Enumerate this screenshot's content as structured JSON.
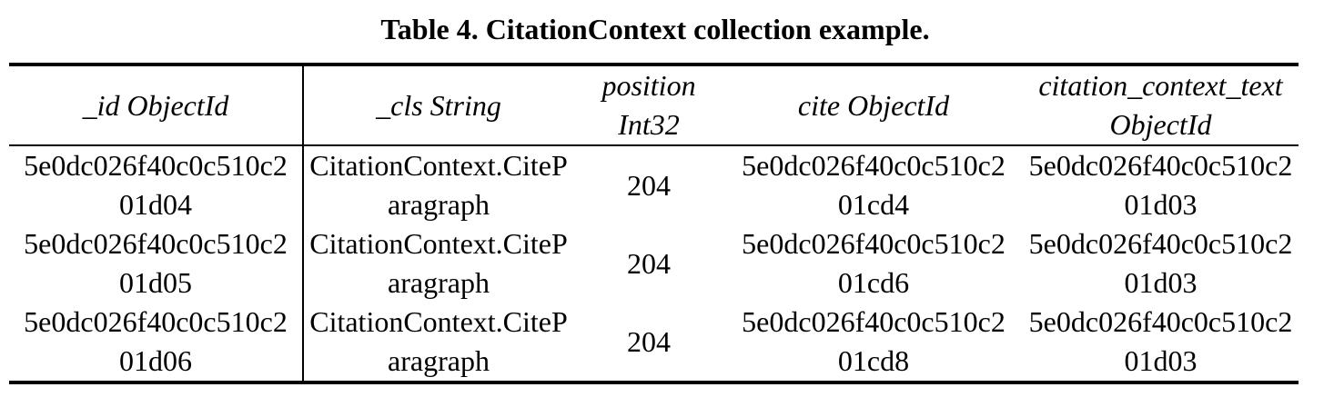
{
  "caption": "Table 4. CitationContext collection example.",
  "table": {
    "headers": [
      "_id ObjectId",
      "_cls String",
      "position Int32",
      "cite ObjectId",
      "citation_context_text ObjectId"
    ],
    "rows": [
      [
        "5e0dc026f40c0c510c201d04",
        "CitationContext.CiteParagraph",
        "204",
        "5e0dc026f40c0c510c201cd4",
        "5e0dc026f40c0c510c201d03"
      ],
      [
        "5e0dc026f40c0c510c201d05",
        "CitationContext.CiteParagraph",
        "204",
        "5e0dc026f40c0c510c201cd6",
        "5e0dc026f40c0c510c201d03"
      ],
      [
        "5e0dc026f40c0c510c201d06",
        "CitationContext.CiteParagraph",
        "204",
        "5e0dc026f40c0c510c201cd8",
        "5e0dc026f40c0c510c201d03"
      ]
    ]
  }
}
